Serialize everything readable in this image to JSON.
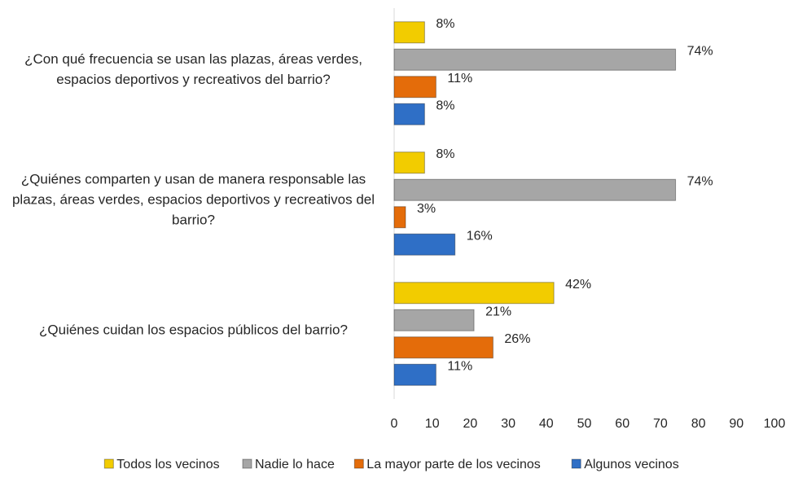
{
  "chart_data": {
    "type": "bar",
    "orientation": "horizontal",
    "categories": [
      "¿Con qué frecuencia se usan las plazas, áreas verdes, espacios deportivos y recreativos del barrio?",
      "¿Quiénes comparten y usan de manera responsable las plazas, áreas  verdes, espacios deportivos y recreativos del barrio?",
      "¿Quiénes cuidan los espacios públicos del barrio?"
    ],
    "series": [
      {
        "name": "Todos los vecinos",
        "color": "#f2cc00",
        "values": [
          8,
          8,
          42
        ],
        "value_labels": [
          "8%",
          "8%",
          "42%"
        ]
      },
      {
        "name": "Nadie lo hace",
        "color": "#a6a6a6",
        "values": [
          74,
          74,
          21
        ],
        "value_labels": [
          "74%",
          "74%",
          "21%"
        ]
      },
      {
        "name": "La mayor parte de los vecinos",
        "color": "#e46c0a",
        "values": [
          11,
          3,
          26
        ],
        "value_labels": [
          "11%",
          "3%",
          "26%"
        ]
      },
      {
        "name": "Algunos vecinos",
        "color": "#2f6fc6",
        "values": [
          8,
          16,
          11
        ],
        "value_labels": [
          "8%",
          "16%",
          "11%"
        ]
      }
    ],
    "xlim": [
      0,
      100
    ],
    "xticks": [
      0,
      10,
      20,
      30,
      40,
      50,
      60,
      70,
      80,
      90,
      100
    ],
    "legend": "bottom"
  }
}
